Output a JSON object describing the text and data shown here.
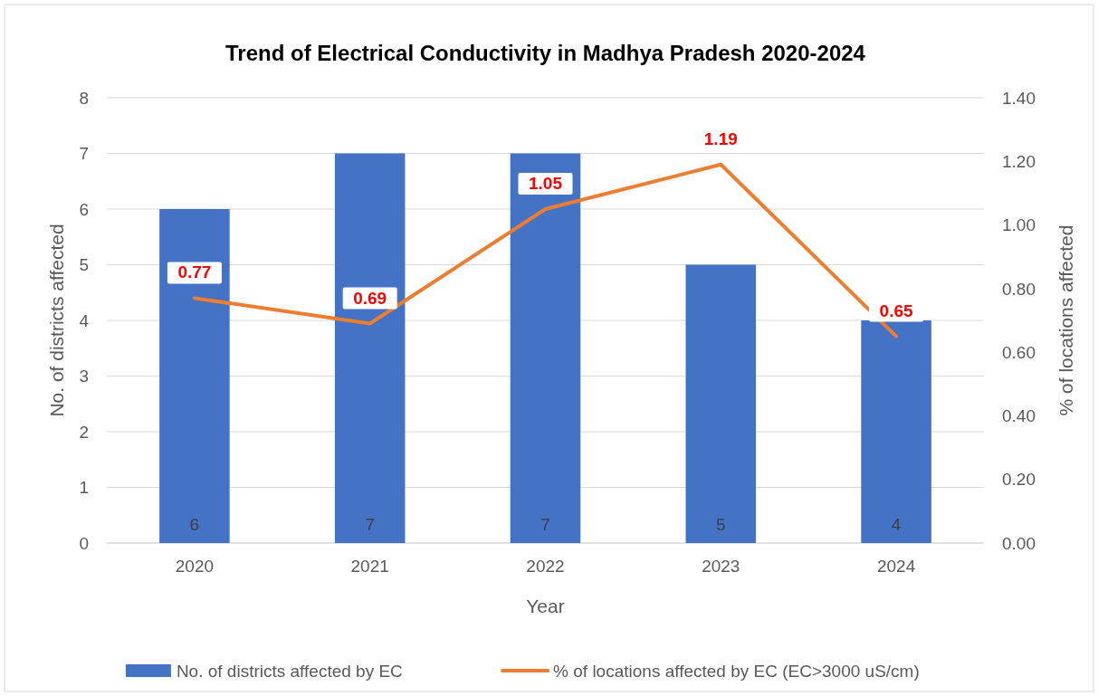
{
  "chart_data": {
    "type": "bar",
    "title": "Trend of Electrical Conductivity in Madhya Pradesh 2020-2024",
    "xlabel": "Year",
    "ylabel": "No. of districts affected",
    "y2label": "% of locations affected",
    "categories": [
      "2020",
      "2021",
      "2022",
      "2023",
      "2024"
    ],
    "series": [
      {
        "name": "No. of districts affected by EC",
        "color": "#4472c4",
        "values": [
          6,
          7,
          7,
          5,
          4
        ]
      },
      {
        "name": "% of locations affected by EC (EC>3000 uS/cm)",
        "type": "line",
        "axis": "y2",
        "color": "#ed7d31",
        "values": [
          0.77,
          0.69,
          1.05,
          1.19,
          0.65
        ]
      }
    ],
    "ylim": [
      0,
      8
    ],
    "yticks": [
      0,
      1,
      2,
      3,
      4,
      5,
      6,
      7,
      8
    ],
    "y2lim": [
      0,
      1.4
    ],
    "y2ticks": [
      {
        "value": 0,
        "label": "0.00"
      },
      {
        "value": 0.2,
        "label": "0.20"
      },
      {
        "value": 0.4,
        "label": "0.40"
      },
      {
        "value": 0.6,
        "label": "0.60"
      },
      {
        "value": 0.8,
        "label": "0.80"
      },
      {
        "value": 1,
        "label": "1.00"
      },
      {
        "value": 1.2,
        "label": "1.20"
      },
      {
        "value": 1.4,
        "label": "1.40"
      }
    ],
    "grid": "y",
    "legend": "bottom",
    "data_labels": true,
    "marker": "none"
  }
}
